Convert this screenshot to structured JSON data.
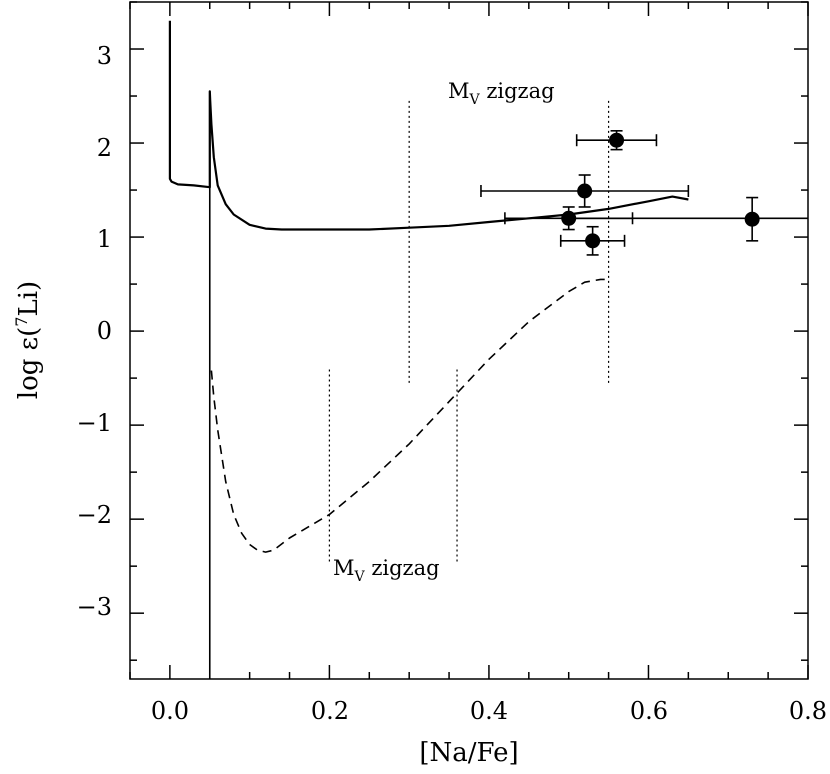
{
  "chart_data": {
    "type": "line",
    "title": "",
    "xlabel": "[Na/Fe]",
    "ylabel_parts": {
      "prefix": "log ε(",
      "superscript": "7",
      "element": "Li",
      "suffix": ")"
    },
    "xlim": [
      -0.05,
      0.8
    ],
    "ylim": [
      -3.7,
      3.5
    ],
    "x_ticks": [
      0.0,
      0.2,
      0.4,
      0.6,
      0.8
    ],
    "x_tick_labels": [
      "0.0",
      "0.2",
      "0.4",
      "0.6",
      "0.8"
    ],
    "y_ticks": [
      3,
      2,
      1,
      0,
      -1,
      -2,
      -3
    ],
    "y_tick_labels": [
      "3",
      "2",
      "1",
      "0",
      "−1",
      "−2",
      "−3"
    ],
    "grid": false,
    "series": [
      {
        "name": "model-solid",
        "style": "solid",
        "x": [
          0.0,
          0.0,
          0.002,
          0.01,
          0.03,
          0.05,
          0.05,
          0.0505,
          0.052,
          0.055,
          0.06,
          0.07,
          0.08,
          0.1,
          0.12,
          0.14,
          0.2,
          0.25,
          0.3,
          0.35,
          0.4,
          0.45,
          0.5,
          0.55,
          0.6,
          0.63,
          0.65
        ],
        "y": [
          3.3,
          1.62,
          1.59,
          1.56,
          1.55,
          1.53,
          2.55,
          2.45,
          2.2,
          1.85,
          1.55,
          1.35,
          1.24,
          1.13,
          1.09,
          1.08,
          1.08,
          1.08,
          1.1,
          1.12,
          1.16,
          1.2,
          1.24,
          1.3,
          1.38,
          1.43,
          1.4
        ]
      },
      {
        "name": "model-dashed",
        "style": "dashed",
        "x": [
          0.052,
          0.055,
          0.06,
          0.07,
          0.08,
          0.09,
          0.1,
          0.11,
          0.12,
          0.13,
          0.15,
          0.2,
          0.25,
          0.3,
          0.35,
          0.4,
          0.45,
          0.5,
          0.52,
          0.54,
          0.55
        ],
        "y": [
          -0.42,
          -0.7,
          -1.05,
          -1.6,
          -1.95,
          -2.15,
          -2.27,
          -2.33,
          -2.35,
          -2.33,
          -2.2,
          -1.95,
          -1.6,
          -1.2,
          -0.75,
          -0.3,
          0.1,
          0.42,
          0.52,
          0.55,
          0.55
        ]
      }
    ],
    "vertical_lines": [
      {
        "x": 0.05,
        "y_from": -3.7,
        "y_to": 2.55,
        "style": "solid"
      },
      {
        "x": 0.3,
        "y_from": -0.55,
        "y_to": 2.45,
        "style": "dotted"
      },
      {
        "x": 0.55,
        "y_from": -0.55,
        "y_to": 2.45,
        "style": "dotted"
      },
      {
        "x": 0.2,
        "y_from": -2.45,
        "y_to": -0.4,
        "style": "dotted"
      },
      {
        "x": 0.36,
        "y_from": -2.45,
        "y_to": -0.4,
        "style": "dotted"
      }
    ],
    "horizontal_line": {
      "y": 1.2,
      "x_from": 0.5,
      "x_to": 0.8,
      "style": "solid"
    },
    "points": [
      {
        "x": 0.56,
        "y": 2.03,
        "xerr": 0.05,
        "yerr": 0.1
      },
      {
        "x": 0.52,
        "y": 1.49,
        "xerr": 0.13,
        "yerr": 0.17
      },
      {
        "x": 0.5,
        "y": 1.2,
        "xerr": 0.08,
        "yerr": 0.12
      },
      {
        "x": 0.53,
        "y": 0.96,
        "xerr": 0.04,
        "yerr": 0.15
      },
      {
        "x": 0.73,
        "y": 1.19,
        "xerr": 0.0,
        "yerr": 0.23
      }
    ],
    "annotations": [
      {
        "id": "upper",
        "prefix": "M",
        "subscript": "V",
        "text": " zigzag",
        "x": 0.348,
        "y": 2.55
      },
      {
        "id": "lower",
        "prefix": "M",
        "subscript": "V",
        "text": " zigzag",
        "x": 0.206,
        "y": -2.65
      }
    ]
  }
}
